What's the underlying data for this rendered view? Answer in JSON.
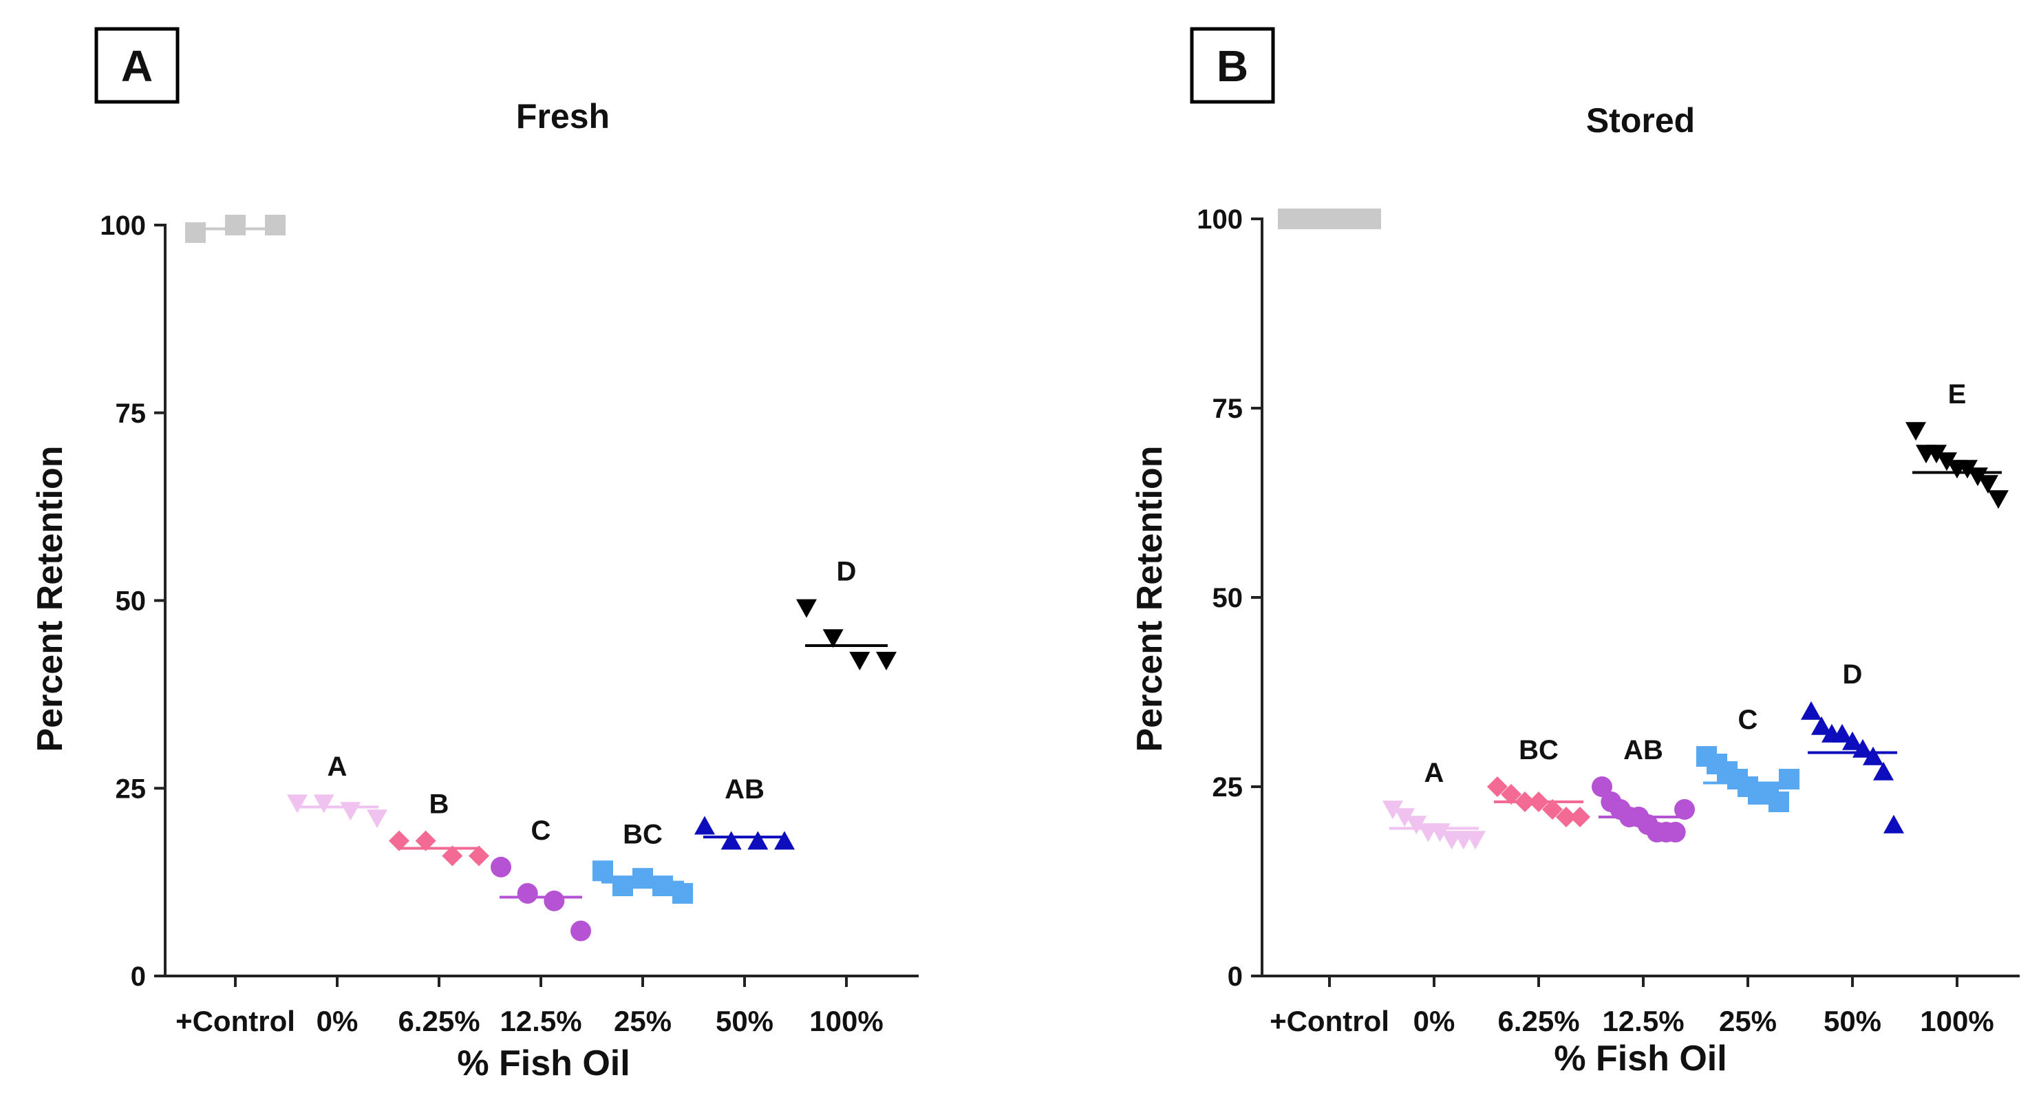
{
  "chart_data": [
    {
      "panel": "A",
      "title": "Fresh",
      "type": "scatter",
      "xlabel": "% Fish Oil",
      "ylabel": "Percent Retention",
      "ylim": [
        0,
        100
      ],
      "yticks": [
        0,
        25,
        50,
        75,
        100
      ],
      "categories": [
        "+Control",
        "0%",
        "6.25%",
        "12.5%",
        "25%",
        "50%",
        "100%"
      ],
      "series": [
        {
          "category": "+Control",
          "marker": "square",
          "color": "#c9c9c9",
          "points": [
            99,
            100,
            100
          ],
          "mean": 99.5,
          "label": ""
        },
        {
          "category": "0%",
          "marker": "triangle-down",
          "color": "#f0c2f0",
          "points": [
            23,
            23,
            22,
            21
          ],
          "mean": 22.5,
          "label": "A"
        },
        {
          "category": "6.25%",
          "marker": "diamond",
          "color": "#f36b95",
          "points": [
            18,
            18,
            16,
            16
          ],
          "mean": 17,
          "label": "B"
        },
        {
          "category": "12.5%",
          "marker": "circle",
          "color": "#b553d4",
          "points": [
            14.5,
            11,
            10,
            6
          ],
          "mean": 10.5,
          "label": "C"
        },
        {
          "category": "25%",
          "marker": "square",
          "color": "#57a8f0",
          "points": [
            14,
            12,
            13,
            12,
            11
          ],
          "mean": 12.5,
          "label": "BC"
        },
        {
          "category": "50%",
          "marker": "triangle-up",
          "color": "#0d0dbd",
          "points": [
            20,
            18,
            18,
            18
          ],
          "mean": 18.5,
          "label": "AB"
        },
        {
          "category": "100%",
          "marker": "triangle-down",
          "color": "#000000",
          "points": [
            49,
            45,
            42,
            42
          ],
          "mean": 44,
          "label": "D"
        }
      ]
    },
    {
      "panel": "B",
      "title": "Stored",
      "type": "scatter",
      "xlabel": "% Fish Oil",
      "ylabel": "Percent Retention",
      "ylim": [
        0,
        100
      ],
      "yticks": [
        0,
        25,
        50,
        75,
        100
      ],
      "categories": [
        "+Control",
        "0%",
        "6.25%",
        "12.5%",
        "25%",
        "50%",
        "100%"
      ],
      "series": [
        {
          "category": "+Control",
          "marker": "square",
          "color": "#c9c9c9",
          "points": [
            100,
            100,
            100,
            100,
            100,
            100
          ],
          "mean": 100,
          "label": ""
        },
        {
          "category": "0%",
          "marker": "triangle-down",
          "color": "#f0c2f0",
          "points": [
            22,
            21,
            20,
            19,
            19,
            18,
            18,
            18
          ],
          "mean": 19.5,
          "label": "A"
        },
        {
          "category": "6.25%",
          "marker": "diamond",
          "color": "#f36b95",
          "points": [
            25,
            24,
            23,
            23,
            22,
            21,
            21
          ],
          "mean": 23,
          "label": "BC"
        },
        {
          "category": "12.5%",
          "marker": "circle",
          "color": "#b553d4",
          "points": [
            25,
            23,
            22,
            21,
            21,
            20,
            19,
            19,
            19,
            22
          ],
          "mean": 21,
          "label": "AB"
        },
        {
          "category": "25%",
          "marker": "square",
          "color": "#57a8f0",
          "points": [
            29,
            28,
            27,
            26,
            25,
            24,
            24,
            23,
            26
          ],
          "mean": 25.5,
          "label": "C"
        },
        {
          "category": "50%",
          "marker": "triangle-up",
          "color": "#0d0dbd",
          "points": [
            35,
            33,
            32,
            32,
            31,
            30,
            29,
            27,
            20
          ],
          "mean": 29.5,
          "label": "D"
        },
        {
          "category": "100%",
          "marker": "triangle-down",
          "color": "#000000",
          "points": [
            72,
            69,
            69,
            68,
            67,
            67,
            66,
            65,
            63
          ],
          "mean": 66.5,
          "label": "E"
        }
      ]
    }
  ]
}
